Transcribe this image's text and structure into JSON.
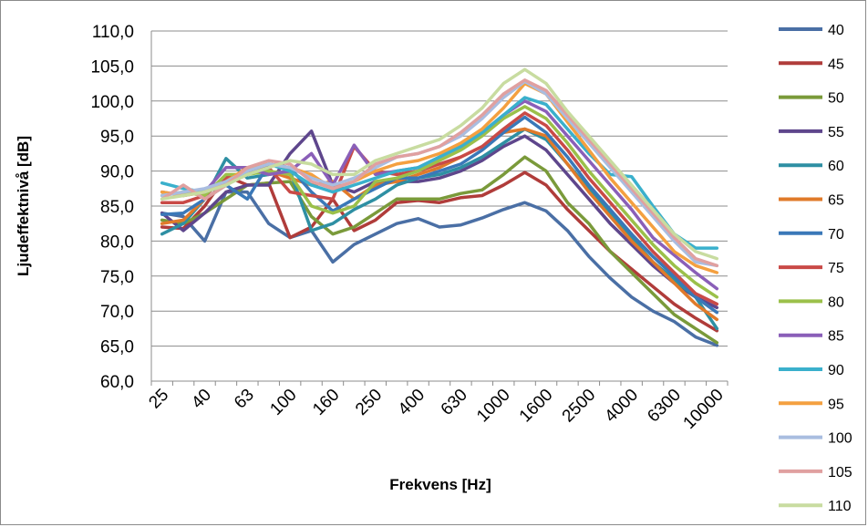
{
  "chart_data": {
    "type": "line",
    "xlabel": "Frekvens [Hz]",
    "ylabel": "Ljudeffektnivå [dB]",
    "ylim": [
      60,
      110
    ],
    "grid": "horizontal",
    "legend_position": "right",
    "y_ticks": [
      "60,0",
      "65,0",
      "70,0",
      "75,0",
      "80,0",
      "85,0",
      "90,0",
      "95,0",
      "100,0",
      "105,0",
      "110,0"
    ],
    "categories": [
      "25",
      "31.5",
      "40",
      "50",
      "63",
      "80",
      "100",
      "125",
      "160",
      "200",
      "250",
      "315",
      "400",
      "500",
      "630",
      "800",
      "1000",
      "1250",
      "1600",
      "2000",
      "2500",
      "3150",
      "4000",
      "5000",
      "6300",
      "8000",
      "10000"
    ],
    "category_labels_shown": [
      "25",
      "40",
      "63",
      "100",
      "160",
      "250",
      "400",
      "630",
      "1000",
      "1600",
      "2500",
      "4000",
      "6300",
      "10000"
    ],
    "series": [
      {
        "name": "40",
        "color": "#4a6fa5",
        "values": [
          84,
          83.5,
          80,
          87,
          87,
          82.5,
          80.5,
          81.5,
          77,
          79.5,
          81,
          82.5,
          83.2,
          82,
          82.3,
          83.3,
          84.5,
          85.5,
          84.3,
          81.5,
          77.8,
          74.7,
          72,
          70,
          68.5,
          66.3,
          65.1
        ]
      },
      {
        "name": "45",
        "color": "#b03c3a",
        "values": [
          82,
          81.8,
          85,
          89.3,
          88,
          88.3,
          80.5,
          82,
          86,
          81.5,
          83,
          85.5,
          85.8,
          85.5,
          86.2,
          86.5,
          88,
          89.8,
          88,
          84.5,
          81.5,
          78.5,
          76,
          73.5,
          71,
          69,
          67.2
        ]
      },
      {
        "name": "50",
        "color": "#7a9a3a",
        "values": [
          83,
          82.5,
          84,
          86,
          88,
          88.3,
          88.5,
          83.5,
          81,
          82,
          84,
          86,
          86,
          86,
          86.8,
          87.3,
          89.5,
          92,
          90,
          85.5,
          82.5,
          78.5,
          75.5,
          72.5,
          69.5,
          67.5,
          65.5
        ]
      },
      {
        "name": "55",
        "color": "#5e468c",
        "values": [
          84,
          81.5,
          84,
          87,
          88,
          88,
          92.5,
          95.7,
          88,
          87,
          88.5,
          88.5,
          88.5,
          89,
          90,
          91.5,
          93.5,
          95,
          93,
          89.5,
          86,
          82.5,
          79.5,
          76.5,
          74,
          72,
          70.5
        ]
      },
      {
        "name": "60",
        "color": "#2e8fa3",
        "values": [
          81,
          82.5,
          86,
          91.8,
          89,
          89.5,
          90,
          81.5,
          82.5,
          84.5,
          86,
          88,
          89,
          89.5,
          90.5,
          92,
          94,
          96,
          94.5,
          91,
          87.5,
          84,
          80.5,
          77,
          74.5,
          72,
          67.5
        ]
      },
      {
        "name": "65",
        "color": "#e07a2a",
        "values": [
          82.5,
          83,
          86,
          88,
          90.5,
          90,
          89,
          88,
          88.5,
          86,
          88,
          88.5,
          89.5,
          90.5,
          92,
          93.5,
          95.5,
          96,
          95,
          91,
          87,
          83.5,
          80,
          77,
          74,
          71,
          68.8
        ]
      },
      {
        "name": "70",
        "color": "#3a78b8",
        "values": [
          83.8,
          84,
          86,
          88,
          86,
          91,
          90.5,
          87,
          84.3,
          86,
          87.5,
          89,
          89,
          90,
          91,
          93,
          95.5,
          97.7,
          95.5,
          92,
          88,
          84.5,
          81,
          77.8,
          75,
          72,
          69.8
        ]
      },
      {
        "name": "75",
        "color": "#c94a47",
        "values": [
          85.5,
          85.5,
          86.5,
          89,
          90,
          90.5,
          87,
          86.5,
          86,
          93.5,
          90,
          89.5,
          90,
          91,
          92,
          93.5,
          96,
          98.3,
          96.5,
          93,
          89,
          85.5,
          82,
          78.5,
          75.5,
          72.5,
          71
        ]
      },
      {
        "name": "80",
        "color": "#9bc04a",
        "values": [
          86.5,
          87,
          86.5,
          89.5,
          89.5,
          90,
          89.5,
          85,
          84,
          85,
          88.5,
          89,
          90,
          91.5,
          93,
          95,
          97.5,
          99.2,
          97.5,
          94,
          90,
          86.5,
          83,
          79.5,
          76.5,
          74,
          72
        ]
      },
      {
        "name": "85",
        "color": "#8a5fb8",
        "values": [
          87,
          86.5,
          87,
          90.5,
          90.5,
          89.5,
          90,
          92.5,
          88,
          93.7,
          89.5,
          90,
          90.5,
          92,
          93.5,
          95.5,
          98,
          100,
          98.5,
          95,
          91.5,
          88,
          84.5,
          80.5,
          78,
          75.5,
          73.2
        ]
      },
      {
        "name": "90",
        "color": "#3ab0cc",
        "values": [
          88.3,
          87.5,
          87,
          88,
          90,
          91,
          90,
          88,
          87,
          88,
          89,
          90,
          90.5,
          92,
          93.5,
          95.5,
          98,
          100.5,
          99.5,
          96,
          92.5,
          89.5,
          89.2,
          85,
          81,
          79,
          79
        ]
      },
      {
        "name": "95",
        "color": "#f4a040",
        "values": [
          87,
          86.5,
          87,
          88.5,
          90.5,
          91,
          90.5,
          89.5,
          87.5,
          88.5,
          90,
          91,
          91.5,
          92.5,
          94,
          96,
          99,
          102.5,
          101,
          97,
          93,
          89,
          85.5,
          82,
          78.5,
          76.5,
          75.5
        ]
      },
      {
        "name": "100",
        "color": "#a9bde0",
        "values": [
          86.5,
          87,
          87.5,
          88.5,
          90,
          91,
          90.5,
          89,
          88,
          89,
          90.5,
          92,
          92.5,
          93.5,
          95,
          97.5,
          100.5,
          102.8,
          101,
          97.5,
          94,
          90.5,
          87,
          83.5,
          80,
          77,
          76.5
        ]
      },
      {
        "name": "105",
        "color": "#e0a0a0",
        "values": [
          86,
          88,
          86,
          88,
          90.5,
          91.5,
          91,
          88.5,
          87.5,
          88.5,
          91,
          92,
          92.5,
          93.5,
          95.5,
          98,
          101,
          103,
          101.5,
          98,
          94.5,
          91,
          87.5,
          84,
          80.5,
          77.5,
          76.5
        ]
      },
      {
        "name": "110",
        "color": "#c8dca0",
        "values": [
          86,
          86.5,
          87,
          88,
          89.5,
          90.5,
          91.5,
          91,
          89.5,
          89.5,
          91.5,
          92.5,
          93.5,
          94.5,
          96.5,
          99,
          102.5,
          104.5,
          102.5,
          98.5,
          95,
          91.5,
          88,
          84.5,
          81,
          78.5,
          77.5
        ]
      }
    ]
  }
}
